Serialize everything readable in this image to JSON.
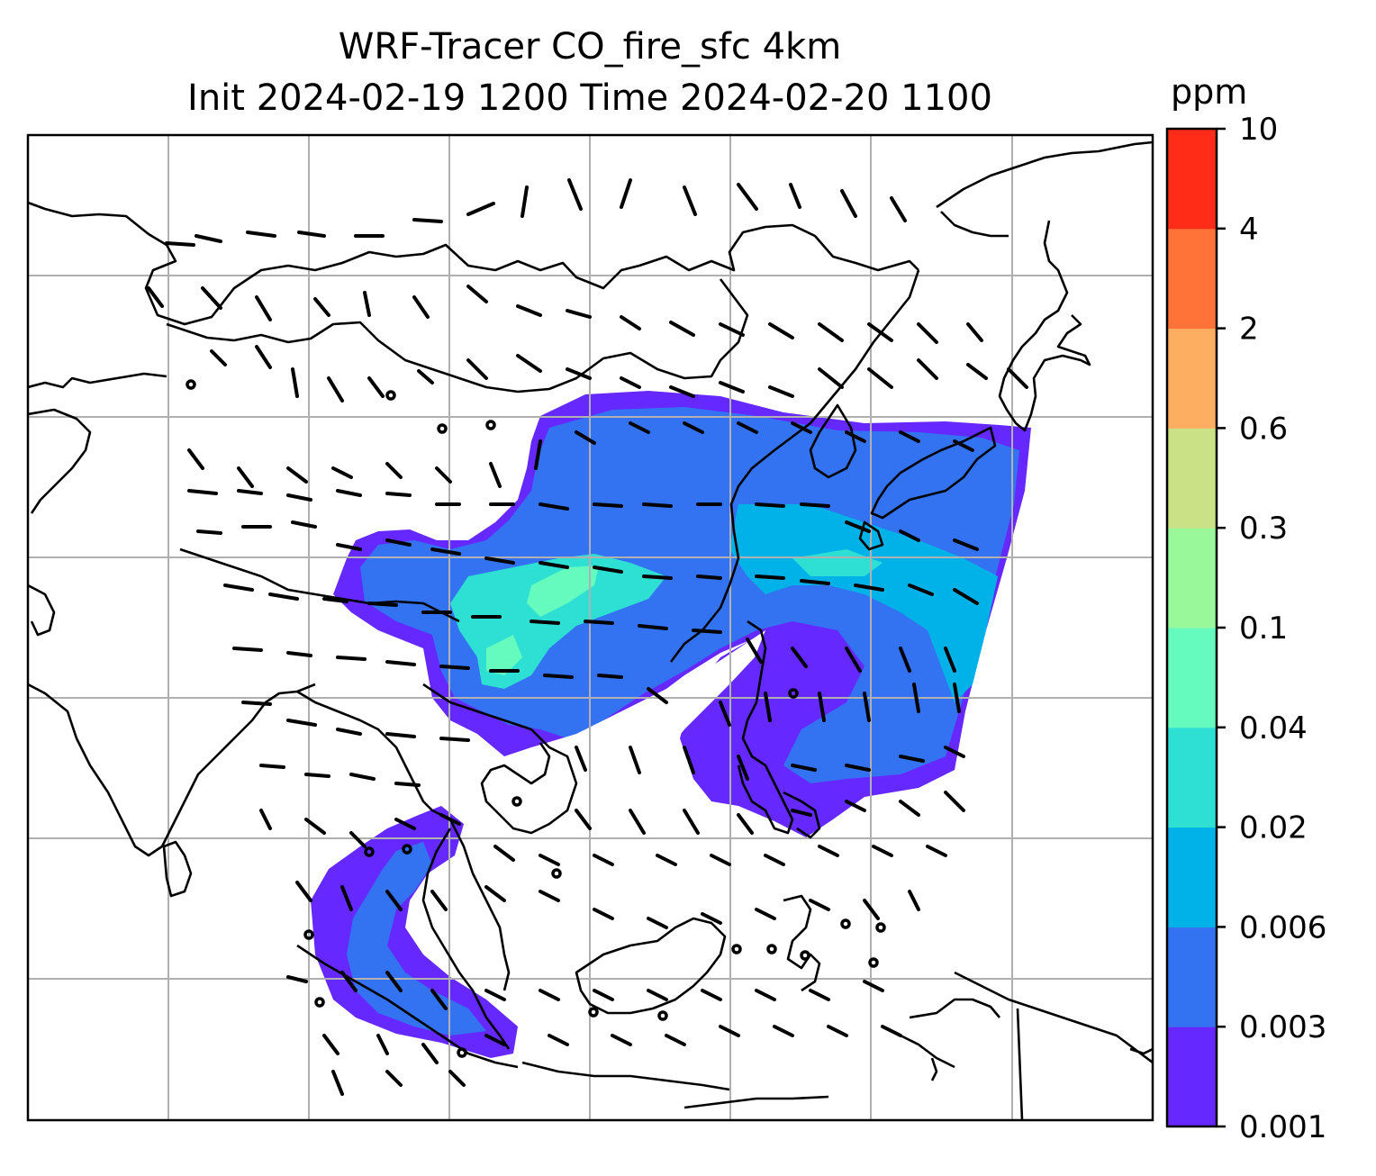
{
  "figure": {
    "title_line1": "WRF-Tracer CO_fire_sfc 4km",
    "title_line2": "Init 2024-02-19 1200 Time 2024-02-20 1100"
  },
  "colorbar": {
    "unit": "ppm",
    "levels": [
      "0.001",
      "0.003",
      "0.006",
      "0.02",
      "0.04",
      "0.1",
      "0.3",
      "0.6",
      "2",
      "4",
      "10"
    ],
    "colors": [
      "#6528ff",
      "#3373f2",
      "#00b2e8",
      "#2ee0d4",
      "#66fbbe",
      "#99f99a",
      "#cbe185",
      "#fdae61",
      "#ff7339",
      "#ff2c17"
    ]
  },
  "map": {
    "gridlines": true,
    "background": "#ffffff",
    "coastline_color": "#000000",
    "wind_barbs": "black"
  }
}
